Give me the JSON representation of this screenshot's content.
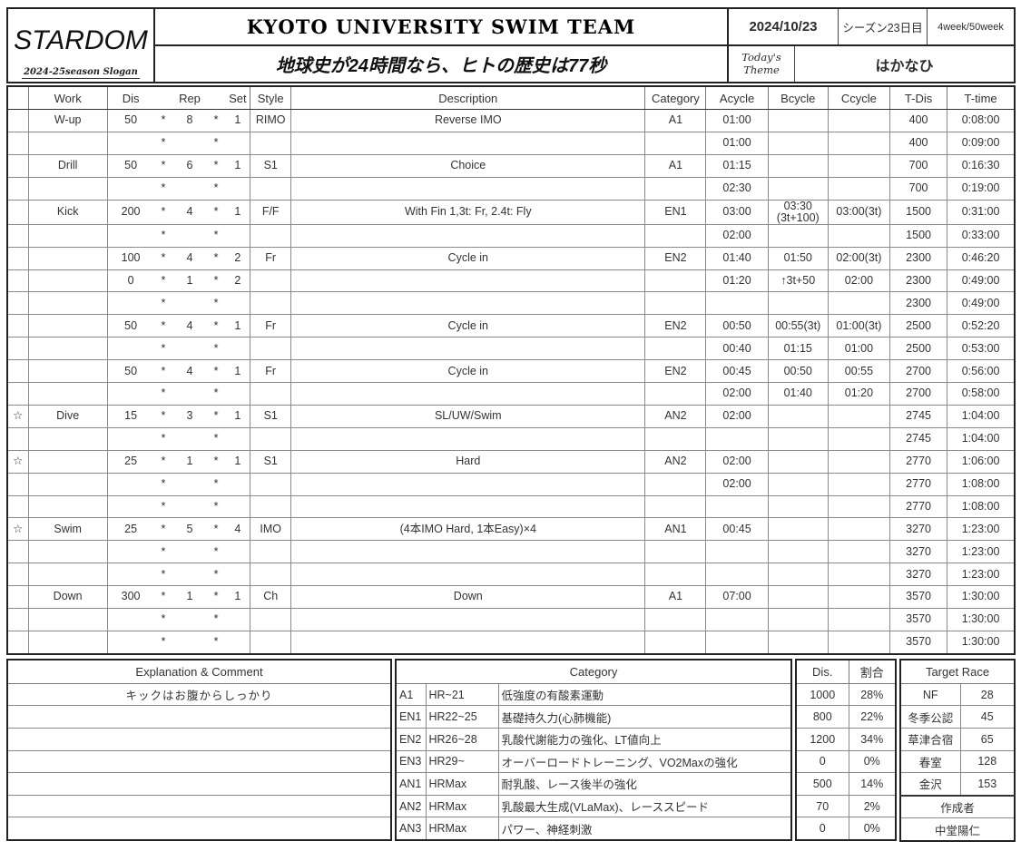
{
  "header": {
    "logo": "STARDOM",
    "logo_sub": "2024-25season Slogan",
    "title": "KYOTO UNIVERSITY SWIM TEAM",
    "slogan": "地球史が24時間なら、ヒトの歴史は77秒",
    "date": "2024/10/23",
    "season_day": "シーズン23日目",
    "week": "4week/50week",
    "theme_label": "Today's\nTheme",
    "theme": "はかなひ"
  },
  "main_table": {
    "columns": {
      "work": "Work",
      "dis": "Dis",
      "rep": "Rep",
      "set": "Set",
      "style": "Style",
      "desc": "Description",
      "cat": "Category",
      "a": "Acycle",
      "b": "Bcycle",
      "c": "Ccycle",
      "td": "T-Dis",
      "tt": "T-time"
    },
    "rows": [
      {
        "sep": true,
        "work": "W-up",
        "dis": "50",
        "x1": "*",
        "rep": "8",
        "x2": "*",
        "set": "1",
        "style": "RIMO",
        "desc": "Reverse IMO",
        "cat": "A1",
        "a": "01:00",
        "td": "400",
        "tt": "0:08:00"
      },
      {
        "x1": "*",
        "x2": "*",
        "a": "01:00",
        "td": "400",
        "tt": "0:09:00"
      },
      {
        "sep": true,
        "work": "Drill",
        "dis": "50",
        "x1": "*",
        "rep": "6",
        "x2": "*",
        "set": "1",
        "style": "S1",
        "desc": "Choice",
        "cat": "A1",
        "a": "01:15",
        "td": "700",
        "tt": "0:16:30"
      },
      {
        "x1": "*",
        "x2": "*",
        "a": "02:30",
        "td": "700",
        "tt": "0:19:00"
      },
      {
        "sep": true,
        "work": "Kick",
        "dis": "200",
        "x1": "*",
        "rep": "4",
        "x2": "*",
        "set": "1",
        "style": "F/F",
        "desc": "With Fin 1,3t: Fr, 2.4t: Fly",
        "cat": "EN1",
        "a": "03:00",
        "b": "03:30\n(3t+100)",
        "b_small": true,
        "c": "03:00(3t)",
        "td": "1500",
        "tt": "0:31:00"
      },
      {
        "x1": "*",
        "x2": "*",
        "a": "02:00",
        "td": "1500",
        "tt": "0:33:00"
      },
      {
        "sep": true,
        "dis": "100",
        "x1": "*",
        "rep": "4",
        "x2": "*",
        "set": "2",
        "style": "Fr",
        "desc": "Cycle in",
        "cat": "EN2",
        "a": "01:40",
        "b": "01:50",
        "c": "02:00(3t)",
        "td": "2300",
        "tt": "0:46:20"
      },
      {
        "dis": "0",
        "x1": "*",
        "rep": "1",
        "x2": "*",
        "set": "2",
        "a": "01:20",
        "b": "↑3t+50",
        "c": "02:00",
        "td": "2300",
        "tt": "0:49:00"
      },
      {
        "x1": "*",
        "x2": "*",
        "td": "2300",
        "tt": "0:49:00"
      },
      {
        "sep": true,
        "dis": "50",
        "x1": "*",
        "rep": "4",
        "x2": "*",
        "set": "1",
        "style": "Fr",
        "desc": "Cycle in",
        "cat": "EN2",
        "a": "00:50",
        "b": "00:55(3t)",
        "c": "01:00(3t)",
        "td": "2500",
        "tt": "0:52:20"
      },
      {
        "x1": "*",
        "x2": "*",
        "a": "00:40",
        "b": "01:15",
        "c": "01:00",
        "td": "2500",
        "tt": "0:53:00"
      },
      {
        "sep": true,
        "dis": "50",
        "x1": "*",
        "rep": "4",
        "x2": "*",
        "set": "1",
        "style": "Fr",
        "desc": "Cycle in",
        "cat": "EN2",
        "a": "00:45",
        "b": "00:50",
        "c": "00:55",
        "td": "2700",
        "tt": "0:56:00"
      },
      {
        "x1": "*",
        "x2": "*",
        "a": "02:00",
        "b": "01:40",
        "c": "01:20",
        "td": "2700",
        "tt": "0:58:00"
      },
      {
        "sep": true,
        "star": "☆",
        "work": "Dive",
        "dis": "15",
        "x1": "*",
        "rep": "3",
        "x2": "*",
        "set": "1",
        "style": "S1",
        "desc": "SL/UW/Swim",
        "cat": "AN2",
        "a": "02:00",
        "td": "2745",
        "tt": "1:04:00"
      },
      {
        "x1": "*",
        "x2": "*",
        "td": "2745",
        "tt": "1:04:00"
      },
      {
        "sep": true,
        "star": "☆",
        "dis": "25",
        "x1": "*",
        "rep": "1",
        "x2": "*",
        "set": "1",
        "style": "S1",
        "desc": "Hard",
        "cat": "AN2",
        "a": "02:00",
        "td": "2770",
        "tt": "1:06:00"
      },
      {
        "x1": "*",
        "x2": "*",
        "a": "02:00",
        "td": "2770",
        "tt": "1:08:00"
      },
      {
        "x1": "*",
        "x2": "*",
        "td": "2770",
        "tt": "1:08:00"
      },
      {
        "sep": true,
        "star": "☆",
        "work": "Swim",
        "dis": "25",
        "x1": "*",
        "rep": "5",
        "x2": "*",
        "set": "4",
        "style": "IMO",
        "desc": "(4本IMO Hard, 1本Easy)×4",
        "cat": "AN1",
        "a": "00:45",
        "td": "3270",
        "tt": "1:23:00"
      },
      {
        "x1": "*",
        "x2": "*",
        "td": "3270",
        "tt": "1:23:00"
      },
      {
        "x1": "*",
        "x2": "*",
        "td": "3270",
        "tt": "1:23:00"
      },
      {
        "sep": true,
        "work": "Down",
        "dis": "300",
        "x1": "*",
        "rep": "1",
        "x2": "*",
        "set": "1",
        "style": "Ch",
        "desc": "Down",
        "cat": "A1",
        "a": "07:00",
        "td": "3570",
        "tt": "1:30:00"
      },
      {
        "x1": "*",
        "x2": "*",
        "td": "3570",
        "tt": "1:30:00"
      },
      {
        "x1": "*",
        "x2": "*",
        "td": "3570",
        "tt": "1:30:00"
      }
    ]
  },
  "explanation": {
    "title": "Explanation & Comment",
    "rows": [
      "キックはお腹からしっかり",
      "",
      "",
      "",
      "",
      "",
      ""
    ]
  },
  "category_panel": {
    "title": "Category",
    "dis_label": "Dis.",
    "pct_label": "割合",
    "rows": [
      {
        "code": "A1",
        "hr": "HR~21",
        "desc": "低強度の有酸素運動",
        "dis": "1000",
        "pct": "28%"
      },
      {
        "code": "EN1",
        "hr": "HR22~25",
        "desc": "基礎持久力(心肺機能)",
        "dis": "800",
        "pct": "22%"
      },
      {
        "code": "EN2",
        "hr": "HR26~28",
        "desc": "乳酸代謝能力の強化、LT値向上",
        "dis": "1200",
        "pct": "34%"
      },
      {
        "code": "EN3",
        "hr": "HR29~",
        "desc": "オーバーロードトレーニング、VO2Maxの強化",
        "dis": "0",
        "pct": "0%"
      },
      {
        "code": "AN1",
        "hr": "HRMax",
        "desc": "耐乳酸、レース後半の強化",
        "dis": "500",
        "pct": "14%"
      },
      {
        "code": "AN2",
        "hr": "HRMax",
        "desc": "乳酸最大生成(VLaMax)、レーススピード",
        "dis": "70",
        "pct": "2%"
      },
      {
        "code": "AN3",
        "hr": "HRMax",
        "desc": "パワー、神経刺激",
        "dis": "0",
        "pct": "0%"
      }
    ]
  },
  "target_race": {
    "title": "Target Race",
    "entries": [
      {
        "name": "NF",
        "value": "28"
      },
      {
        "name": "冬季公認",
        "value": "45"
      },
      {
        "name": "草津合宿",
        "value": "65"
      },
      {
        "name": "春室",
        "value": "128"
      },
      {
        "name": "金沢",
        "value": "153"
      }
    ],
    "author_label": "作成者",
    "author": "中堂陽仁"
  }
}
